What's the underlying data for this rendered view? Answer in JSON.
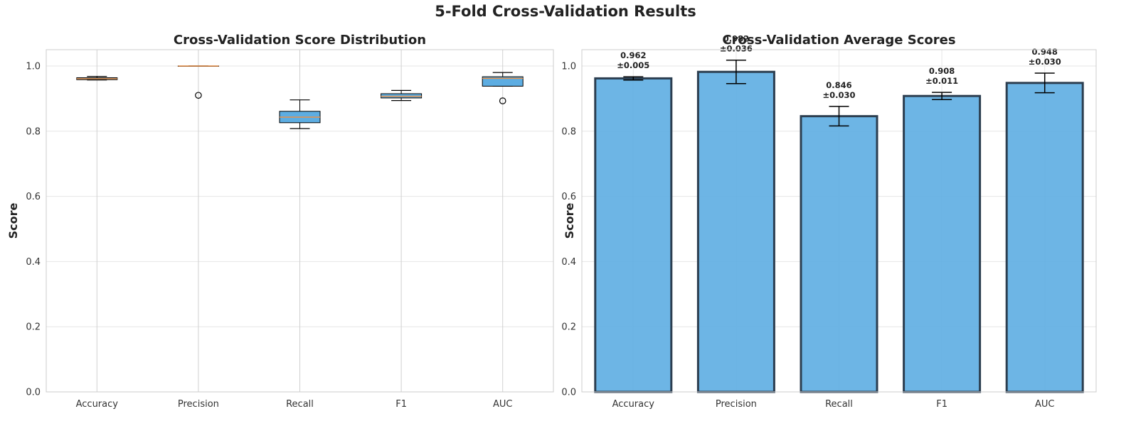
{
  "suptitle": "5-Fold Cross-Validation Results",
  "colors": {
    "box_fill": "#5dade2",
    "median": "#e8914a",
    "bar_fill": "#5dade2",
    "bar_edge": "#2c3e50",
    "grid": "#e6e6e6",
    "frame": "#cccccc"
  },
  "chart_data": [
    {
      "type": "box",
      "title": "Cross-Validation Score Distribution",
      "xlabel": "",
      "ylabel": "Score",
      "ylim": [
        0.0,
        1.05
      ],
      "yticks": [
        "0.0",
        "0.2",
        "0.4",
        "0.6",
        "0.8",
        "1.0"
      ],
      "grid": true,
      "categories": [
        "Accuracy",
        "Precision",
        "Recall",
        "F1",
        "AUC"
      ],
      "boxes": [
        {
          "whisker_low": 0.957,
          "q1": 0.958,
          "median": 0.961,
          "q3": 0.964,
          "whisker_high": 0.968,
          "outliers": []
        },
        {
          "whisker_low": 1.0,
          "q1": 1.0,
          "median": 1.0,
          "q3": 1.0,
          "whisker_high": 1.0,
          "outliers": [
            0.91
          ]
        },
        {
          "whisker_low": 0.808,
          "q1": 0.826,
          "median": 0.843,
          "q3": 0.861,
          "whisker_high": 0.896,
          "outliers": []
        },
        {
          "whisker_low": 0.894,
          "q1": 0.902,
          "median": 0.907,
          "q3": 0.915,
          "whisker_high": 0.925,
          "outliers": []
        },
        {
          "whisker_low": 0.938,
          "q1": 0.938,
          "median": 0.962,
          "q3": 0.967,
          "whisker_high": 0.98,
          "outliers": [
            0.893
          ]
        }
      ]
    },
    {
      "type": "bar",
      "title": "Cross-Validation Average Scores",
      "xlabel": "",
      "ylabel": "Score",
      "ylim": [
        0.0,
        1.05
      ],
      "yticks": [
        "0.0",
        "0.2",
        "0.4",
        "0.6",
        "0.8",
        "1.0"
      ],
      "grid": true,
      "categories": [
        "Accuracy",
        "Precision",
        "Recall",
        "F1",
        "AUC"
      ],
      "values": [
        0.962,
        0.982,
        0.846,
        0.908,
        0.948
      ],
      "errors": [
        0.005,
        0.036,
        0.03,
        0.011,
        0.03
      ],
      "value_labels": [
        "0.962",
        "0.982",
        "0.846",
        "0.908",
        "0.948"
      ],
      "error_labels": [
        "±0.005",
        "±0.036",
        "±0.030",
        "±0.011",
        "±0.030"
      ]
    }
  ]
}
